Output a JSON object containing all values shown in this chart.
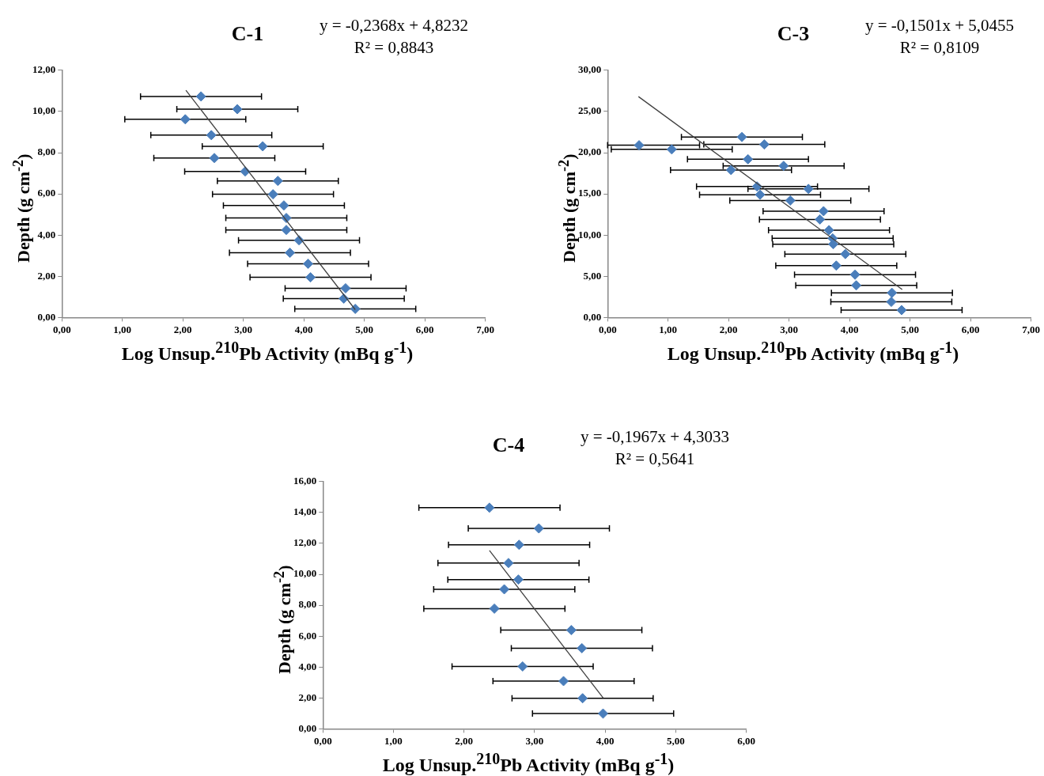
{
  "chart_data": [
    {
      "type": "scatter",
      "title": "C-1",
      "annotations": [
        "y = -0,2368x + 4,8232",
        "R² = 0,8843"
      ],
      "xlabel": "Log Unsup.$^{210}$Pb  Activity (mBq g$^{-1}$)",
      "ylabel": "Depth (g cm$^{-2}$)",
      "marker": "diamond",
      "xlim": [
        0,
        7
      ],
      "xticks": [
        {
          "value": 0,
          "label": "0,00"
        },
        {
          "value": 1,
          "label": "1,00"
        },
        {
          "value": 2,
          "label": "2,00"
        },
        {
          "value": 3,
          "label": "3,00"
        },
        {
          "value": 4,
          "label": "4,00"
        },
        {
          "value": 5,
          "label": "5,00"
        },
        {
          "value": 6,
          "label": "6,00"
        },
        {
          "value": 7,
          "label": "7,00"
        }
      ],
      "ylim": [
        0,
        12
      ],
      "yticks": [
        {
          "value": 0,
          "label": "0,00"
        },
        {
          "value": 2,
          "label": "2,00"
        },
        {
          "value": 4,
          "label": "4,00"
        },
        {
          "value": 6,
          "label": "6,00"
        },
        {
          "value": 8,
          "label": "8,00"
        },
        {
          "value": 10,
          "label": "10,00"
        },
        {
          "value": 12,
          "label": "12,00"
        }
      ],
      "series": [
        {
          "color": "#4a7ebb",
          "x": [
            2.3,
            2.9,
            2.04,
            2.47,
            3.32,
            2.52,
            3.03,
            3.57,
            3.49,
            3.67,
            3.71,
            3.71,
            3.92,
            3.77,
            4.07,
            4.11,
            4.69,
            4.66,
            4.85
          ],
          "values": [
            10.73,
            10.11,
            9.62,
            8.85,
            8.31,
            7.74,
            7.09,
            6.63,
            5.98,
            5.44,
            4.83,
            4.25,
            3.75,
            3.14,
            2.61,
            1.95,
            1.42,
            0.92,
            0.42
          ],
          "xerrors": [
            1,
            1,
            1,
            1,
            1,
            1,
            1,
            1,
            1,
            1,
            1,
            1,
            1,
            1,
            1,
            1,
            1,
            1,
            1
          ]
        },
        {
          "type": "line",
          "color": "#404040",
          "marker": "none",
          "x": [
            2.05,
            4.85
          ],
          "values": [
            11.03,
            0.38
          ]
        }
      ]
    },
    {
      "type": "scatter",
      "title": "C-3",
      "annotations": [
        "y = -0,1501x + 5,0455",
        "R² = 0,8109"
      ],
      "xlabel": "Log Unsup.$^{210}$Pb  Activity (mBq g$^{-1}$)",
      "ylabel": "Depth (g cm$^{-2}$)",
      "marker": "diamond",
      "xlim": [
        0,
        7
      ],
      "xticks": [
        {
          "value": 0,
          "label": "0,00"
        },
        {
          "value": 1,
          "label": "1,00"
        },
        {
          "value": 2,
          "label": "2,00"
        },
        {
          "value": 3,
          "label": "3,00"
        },
        {
          "value": 4,
          "label": "4,00"
        },
        {
          "value": 5,
          "label": "5,00"
        },
        {
          "value": 6,
          "label": "6,00"
        },
        {
          "value": 7,
          "label": "7,00"
        }
      ],
      "ylim": [
        0,
        30
      ],
      "yticks": [
        {
          "value": 0,
          "label": "0,00"
        },
        {
          "value": 5,
          "label": "5,00"
        },
        {
          "value": 10,
          "label": "10,00"
        },
        {
          "value": 15,
          "label": "15,00"
        },
        {
          "value": 20,
          "label": "20,00"
        },
        {
          "value": 25,
          "label": "25,00"
        },
        {
          "value": 30,
          "label": "30,00"
        }
      ],
      "series": [
        {
          "color": "#4a7ebb",
          "x": [
            2.22,
            2.59,
            0.52,
            1.06,
            2.32,
            2.91,
            2.04,
            2.47,
            3.32,
            2.52,
            3.02,
            3.57,
            3.51,
            3.66,
            3.72,
            3.73,
            3.93,
            3.78,
            4.09,
            4.11,
            4.7,
            4.69,
            4.86
          ],
          "values": [
            21.9,
            21.0,
            20.9,
            20.4,
            19.2,
            18.4,
            17.9,
            15.9,
            15.6,
            14.9,
            14.2,
            12.9,
            11.9,
            10.6,
            9.6,
            8.9,
            7.7,
            6.3,
            5.2,
            3.9,
            3.0,
            1.9,
            0.9
          ],
          "xerrors": [
            1,
            1,
            [
              0,
              1.52
            ],
            1,
            1,
            1,
            1,
            1,
            1,
            1,
            1,
            1,
            1,
            1,
            1,
            1,
            1,
            1,
            1,
            1,
            1,
            1,
            1
          ]
        },
        {
          "type": "line",
          "color": "#404040",
          "marker": "none",
          "x": [
            0.51,
            4.87
          ],
          "values": [
            26.8,
            3.4
          ]
        }
      ]
    },
    {
      "type": "scatter",
      "title": "C-4",
      "annotations": [
        "y = -0,1967x + 4,3033",
        "R² = 0,5641"
      ],
      "xlabel": "Log Unsup.$^{210}$Pb  Activity (mBq g$^{-1}$)",
      "ylabel": "Depth (g cm$^{-2}$)",
      "marker": "diamond",
      "xlim": [
        0,
        6
      ],
      "xticks": [
        {
          "value": 0,
          "label": "0,00"
        },
        {
          "value": 1,
          "label": "1,00"
        },
        {
          "value": 2,
          "label": "2,00"
        },
        {
          "value": 3,
          "label": "3,00"
        },
        {
          "value": 4,
          "label": "4,00"
        },
        {
          "value": 5,
          "label": "5,00"
        },
        {
          "value": 6,
          "label": "6,00"
        }
      ],
      "ylim": [
        0,
        16
      ],
      "yticks": [
        {
          "value": 0,
          "label": "0,00"
        },
        {
          "value": 2,
          "label": "2,00"
        },
        {
          "value": 4,
          "label": "4,00"
        },
        {
          "value": 6,
          "label": "6,00"
        },
        {
          "value": 8,
          "label": "8,00"
        },
        {
          "value": 10,
          "label": "10,00"
        },
        {
          "value": 12,
          "label": "12,00"
        },
        {
          "value": 14,
          "label": "14,00"
        },
        {
          "value": 16,
          "label": "16,00"
        }
      ],
      "series": [
        {
          "color": "#4a7ebb",
          "x": [
            2.36,
            3.06,
            2.78,
            2.63,
            2.77,
            2.57,
            2.43,
            3.52,
            3.67,
            2.83,
            3.41,
            3.68,
            3.97
          ],
          "values": [
            14.31,
            12.97,
            11.91,
            10.73,
            9.66,
            9.03,
            7.78,
            6.39,
            5.22,
            4.04,
            3.09,
            1.98,
            0.99
          ],
          "xerrors": [
            1,
            1,
            1,
            1,
            1,
            1,
            1,
            1,
            1,
            1,
            1,
            1,
            1
          ]
        },
        {
          "type": "line",
          "color": "#404040",
          "marker": "none",
          "x": [
            2.36,
            3.97
          ],
          "values": [
            11.54,
            2.01
          ]
        }
      ]
    }
  ]
}
